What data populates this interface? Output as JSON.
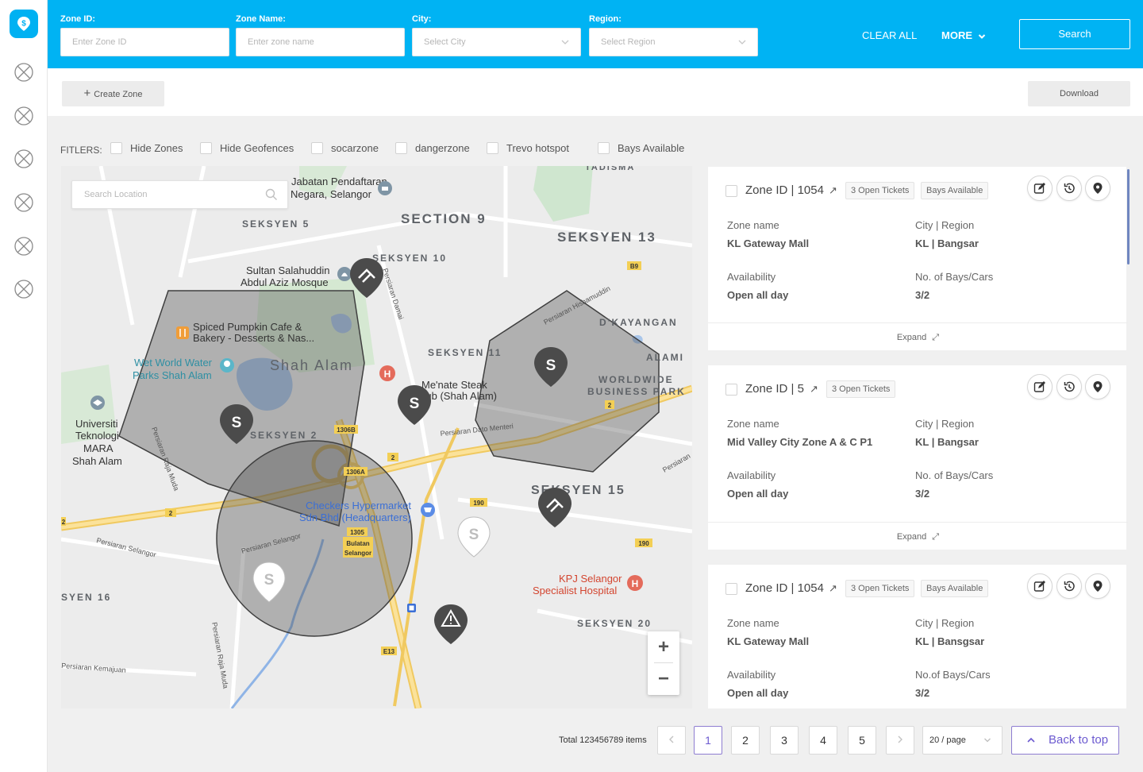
{
  "topbar": {
    "zone_id": {
      "label": "Zone ID:",
      "placeholder": "Enter Zone ID"
    },
    "zone_name": {
      "label": "Zone Name:",
      "placeholder": "Enter zone name"
    },
    "city": {
      "label": "City:",
      "placeholder": "Select City"
    },
    "region": {
      "label": "Region:",
      "placeholder": "Select Region"
    },
    "clear_all": "CLEAR ALL",
    "more": "MORE",
    "search": "Search",
    "accent": "#00b3f3"
  },
  "actions": {
    "create_zone": "Create Zone",
    "download": "Download"
  },
  "filters": {
    "label": "FITLERS:",
    "items": [
      "Hide Zones",
      "Hide Geofences",
      "socarzone",
      "dangerzone",
      "Trevo hotspot",
      "Bays Available"
    ]
  },
  "map": {
    "search_placeholder": "Search Location",
    "labels": {
      "section9": "SECTION 9",
      "seksyen13": "SEKSYEN 13",
      "seksyen5": "SEKSYEN 5",
      "seksyen10": "SEKSYEN 10",
      "seksyen11": "SEKSYEN 11",
      "seksyen2": "SEKSYEN 2",
      "seksyen15": "SEKSYEN 15",
      "seksyen16": "SYEN 16",
      "seksyen20": "SEKSYEN 20",
      "shah_alam": "Shah Alam",
      "dkayangan": "D'KAYANGAN",
      "alami": "ALAMI",
      "worldwide1": "WORLDWIDE",
      "worldwide2": "BUSINESS PARK",
      "tadisma": "TADISMA",
      "mosque1": "Sultan Salahuddin",
      "mosque2": "Abdul Aziz Mosque",
      "jabatan1": "Jabatan Pendaftaran",
      "jabatan2": "Negara, Selangor",
      "cafe1": "Spiced Pumpkin Cafe &",
      "cafe2": "Bakery - Desserts & Nas...",
      "wetworld1": "Wet World Water",
      "wetworld2": "Parks Shah Alam",
      "uitm1": "Universiti",
      "uitm2": "Teknologi",
      "uitm3": "MARA",
      "uitm4": "Shah Alam",
      "menate1": "Me'nate Steak",
      "menate2": "Hub (Shah Alam)",
      "checkers1": "Checkers Hypermarket",
      "checkers2": "Sdn Bhd (Headquarters)",
      "kpj1": "KPJ Selangor",
      "kpj2": "Specialist Hospital",
      "persiaran_dato_menteri": "Persiaran Dato Menteri",
      "persiaran_selangor": "Persiaran Selangor",
      "persiaran_selangor2": "Persiaran Selangor",
      "persiaran_raja_muda": "Persiaran Raja Muda",
      "persiaran_raja_muda2": "Persiaran Raja Muda",
      "persiaran_damai": "Persiaran Damai",
      "persiaran_hishamuddin": "Persiaran Hishamuddin",
      "persiaran_kemajuan": "Persiaran Kemajuan",
      "persiaran_right": "Persiaran",
      "road_b9": "B9",
      "road_2a": "2",
      "road_2b": "2",
      "road_2c": "2",
      "road_2d": "2",
      "road_190a": "190",
      "road_190b": "190",
      "road_1306b": "1306B",
      "road_1306a": "1306A",
      "road_1305": "1305",
      "road_bulatan1": "Bulatan",
      "road_bulatan2": "Selangor",
      "road_e13": "E13",
      "zone_marker": "S"
    },
    "zoom_in": "+",
    "zoom_out": "−"
  },
  "zones": [
    {
      "id_label": "Zone ID | 1054",
      "tags": [
        "3 Open Tickets",
        "Bays Available"
      ],
      "zone_name_label": "Zone name",
      "zone_name": "KL Gateway Mall",
      "city_region_label": "City | Region",
      "city_region": "KL | Bangsar",
      "availability_label": "Availability",
      "availability": "Open all day",
      "bays_label": "No. of Bays/Cars",
      "bays": "3/2",
      "expand": "Expand"
    },
    {
      "id_label": "Zone ID | 5",
      "tags": [
        "3 Open Tickets"
      ],
      "zone_name_label": "Zone name",
      "zone_name": "Mid Valley City Zone A & C P1",
      "city_region_label": "City | Region",
      "city_region": "KL | Bangsar",
      "availability_label": "Availability",
      "availability": "Open all day",
      "bays_label": "No. of Bays/Cars",
      "bays": "3/2",
      "expand": "Expand"
    },
    {
      "id_label": "Zone ID | 1054",
      "tags": [
        "3 Open Tickets",
        "Bays Available"
      ],
      "zone_name_label": "Zone name",
      "zone_name": "KL Gateway Mall",
      "city_region_label": "City | Region",
      "city_region": "KL | Bansgsar",
      "availability_label": "Availability",
      "availability": "Open all day",
      "bays_label": "No.of Bays/Cars",
      "bays": "3/2"
    }
  ],
  "pagination": {
    "total": "Total 123456789 items",
    "pages": [
      "1",
      "2",
      "3",
      "4",
      "5"
    ],
    "current": "1",
    "per_page": "20 / page",
    "back_to_top": "Back to top"
  }
}
